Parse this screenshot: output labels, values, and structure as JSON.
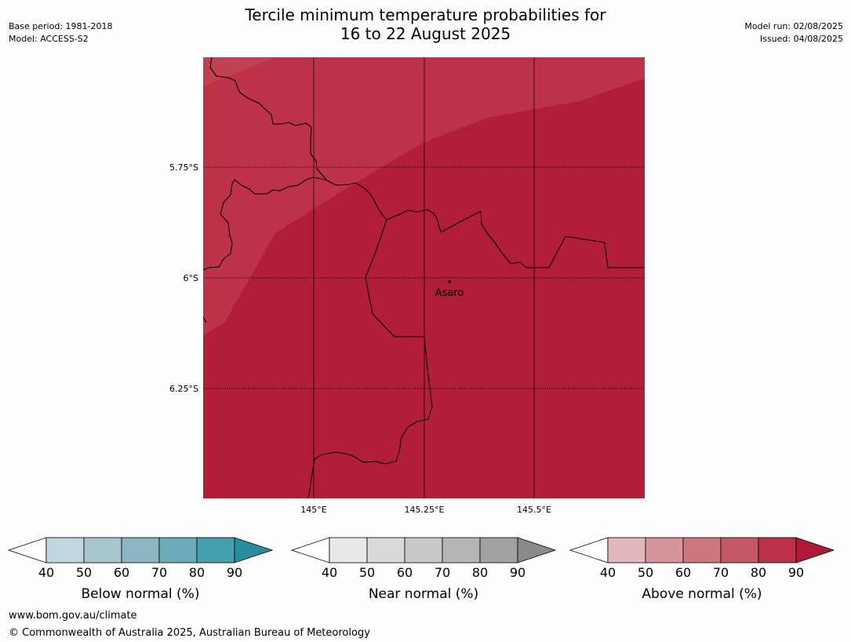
{
  "header": {
    "title_line1": "Tercile minimum temperature probabilities for",
    "title_line2": "16 to 22 August 2025",
    "base_period": "Base period: 1981-2018",
    "model": "Model: ACCESS-S2",
    "model_run": "Model run: 02/08/2025",
    "issued": "Issued: 04/08/2025"
  },
  "map": {
    "lat_labels": [
      "5.75°S",
      "6°S",
      "6.25°S"
    ],
    "lon_labels": [
      "145°E",
      "145.25°E",
      "145.5°E"
    ],
    "place": {
      "name": "Asaro"
    },
    "regions": [
      {
        "category": "Above normal",
        "probability_bin": "80-90",
        "color": "#bd3149"
      },
      {
        "category": "Above normal",
        "probability_bin": ">90",
        "color": "#b21d39"
      }
    ]
  },
  "colorbars": [
    {
      "title": "Below normal (%)",
      "ticks": [
        "40",
        "50",
        "60",
        "70",
        "80",
        "90"
      ],
      "colors": [
        "#ffffff",
        "#c0d5dc",
        "#a7c6cc",
        "#8ab5c3",
        "#6aaab9",
        "#45a0af",
        "#2a8d9f"
      ]
    },
    {
      "title": "Near normal (%)",
      "ticks": [
        "40",
        "50",
        "60",
        "70",
        "80",
        "90"
      ],
      "colors": [
        "#ffffff",
        "#e8e8e8",
        "#d9d9d9",
        "#c8c8c8",
        "#b5b5b5",
        "#a1a1a1",
        "#8a8a8a"
      ]
    },
    {
      "title": "Above normal (%)",
      "ticks": [
        "40",
        "50",
        "60",
        "70",
        "80",
        "90"
      ],
      "colors": [
        "#ffffff",
        "#e2b8bd",
        "#d6949c",
        "#cc767d",
        "#c45764",
        "#bc3148",
        "#b0193a"
      ]
    }
  ],
  "footer": {
    "url": "www.bom.gov.au/climate",
    "copyright": "© Commonwealth of Australia 2025, Australian Bureau of Meteorology"
  }
}
